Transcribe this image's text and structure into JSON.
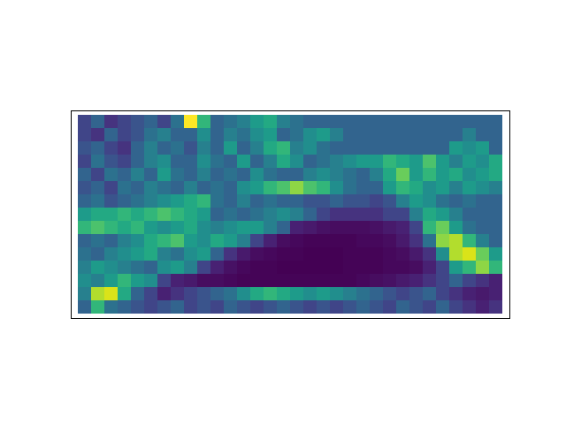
{
  "chart_data": {
    "type": "heatmap",
    "color": "viridis",
    "tick_labels": false,
    "cells": [
      [
        0.2,
        0.3,
        0.15,
        0.2,
        0.25,
        0.3,
        0.2,
        0.35,
        0.9,
        0.6,
        0.3,
        0.35,
        0.4,
        0.5,
        0.55,
        0.4,
        0.35,
        0.3,
        0.3,
        0.3,
        0.3,
        0.3,
        0.3,
        0.3,
        0.3,
        0.3,
        0.3,
        0.3,
        0.3,
        0.3,
        0.3,
        0.3
      ],
      [
        0.2,
        0.15,
        0.3,
        0.2,
        0.25,
        0.35,
        0.4,
        0.3,
        0.3,
        0.45,
        0.3,
        0.4,
        0.35,
        0.45,
        0.5,
        0.3,
        0.35,
        0.45,
        0.5,
        0.4,
        0.3,
        0.3,
        0.3,
        0.3,
        0.3,
        0.3,
        0.3,
        0.3,
        0.3,
        0.4,
        0.3,
        0.3
      ],
      [
        0.25,
        0.3,
        0.2,
        0.15,
        0.3,
        0.4,
        0.3,
        0.35,
        0.25,
        0.4,
        0.3,
        0.5,
        0.3,
        0.4,
        0.55,
        0.6,
        0.4,
        0.45,
        0.35,
        0.3,
        0.3,
        0.3,
        0.3,
        0.3,
        0.3,
        0.3,
        0.3,
        0.3,
        0.5,
        0.45,
        0.5,
        0.3
      ],
      [
        0.2,
        0.35,
        0.25,
        0.2,
        0.3,
        0.4,
        0.45,
        0.3,
        0.3,
        0.45,
        0.35,
        0.3,
        0.5,
        0.3,
        0.4,
        0.55,
        0.45,
        0.3,
        0.35,
        0.4,
        0.45,
        0.5,
        0.5,
        0.6,
        0.55,
        0.5,
        0.65,
        0.5,
        0.4,
        0.5,
        0.45,
        0.55
      ],
      [
        0.3,
        0.2,
        0.35,
        0.3,
        0.4,
        0.3,
        0.5,
        0.35,
        0.3,
        0.4,
        0.3,
        0.35,
        0.3,
        0.45,
        0.35,
        0.3,
        0.3,
        0.4,
        0.45,
        0.4,
        0.35,
        0.3,
        0.4,
        0.55,
        0.7,
        0.5,
        0.6,
        0.5,
        0.55,
        0.45,
        0.5,
        0.55
      ],
      [
        0.25,
        0.3,
        0.2,
        0.35,
        0.3,
        0.4,
        0.35,
        0.3,
        0.4,
        0.3,
        0.35,
        0.3,
        0.45,
        0.5,
        0.6,
        0.65,
        0.75,
        0.65,
        0.6,
        0.45,
        0.35,
        0.3,
        0.3,
        0.5,
        0.6,
        0.55,
        0.45,
        0.5,
        0.4,
        0.5,
        0.45,
        0.4
      ],
      [
        0.3,
        0.35,
        0.25,
        0.3,
        0.35,
        0.4,
        0.45,
        0.5,
        0.55,
        0.6,
        0.35,
        0.3,
        0.4,
        0.3,
        0.35,
        0.3,
        0.3,
        0.25,
        0.25,
        0.3,
        0.25,
        0.25,
        0.2,
        0.25,
        0.4,
        0.5,
        0.45,
        0.35,
        0.3,
        0.35,
        0.3,
        0.3
      ],
      [
        0.5,
        0.55,
        0.55,
        0.6,
        0.55,
        0.6,
        0.65,
        0.6,
        0.55,
        0.5,
        0.3,
        0.35,
        0.3,
        0.35,
        0.4,
        0.45,
        0.4,
        0.3,
        0.2,
        0.15,
        0.15,
        0.15,
        0.15,
        0.2,
        0.2,
        0.4,
        0.55,
        0.5,
        0.4,
        0.3,
        0.3,
        0.3
      ],
      [
        0.6,
        0.65,
        0.6,
        0.55,
        0.6,
        0.5,
        0.45,
        0.5,
        0.55,
        0.45,
        0.4,
        0.45,
        0.5,
        0.5,
        0.4,
        0.3,
        0.1,
        0.08,
        0.06,
        0.05,
        0.05,
        0.05,
        0.06,
        0.08,
        0.1,
        0.2,
        0.6,
        0.7,
        0.5,
        0.35,
        0.3,
        0.3
      ],
      [
        0.3,
        0.35,
        0.3,
        0.4,
        0.45,
        0.55,
        0.6,
        0.65,
        0.5,
        0.45,
        0.55,
        0.5,
        0.4,
        0.2,
        0.1,
        0.05,
        0.04,
        0.03,
        0.03,
        0.03,
        0.03,
        0.04,
        0.04,
        0.05,
        0.08,
        0.15,
        0.35,
        0.75,
        0.8,
        0.6,
        0.4,
        0.3
      ],
      [
        0.35,
        0.3,
        0.4,
        0.45,
        0.5,
        0.55,
        0.4,
        0.35,
        0.45,
        0.5,
        0.3,
        0.15,
        0.08,
        0.05,
        0.04,
        0.03,
        0.03,
        0.02,
        0.02,
        0.02,
        0.03,
        0.03,
        0.03,
        0.04,
        0.05,
        0.08,
        0.15,
        0.45,
        0.8,
        0.85,
        0.7,
        0.5
      ],
      [
        0.4,
        0.5,
        0.45,
        0.4,
        0.35,
        0.3,
        0.45,
        0.5,
        0.4,
        0.2,
        0.1,
        0.06,
        0.04,
        0.03,
        0.03,
        0.02,
        0.02,
        0.02,
        0.02,
        0.02,
        0.03,
        0.03,
        0.03,
        0.04,
        0.04,
        0.05,
        0.1,
        0.2,
        0.5,
        0.6,
        0.75,
        0.6
      ],
      [
        0.45,
        0.4,
        0.5,
        0.6,
        0.5,
        0.45,
        0.2,
        0.1,
        0.08,
        0.05,
        0.05,
        0.04,
        0.03,
        0.03,
        0.03,
        0.03,
        0.03,
        0.03,
        0.03,
        0.03,
        0.03,
        0.04,
        0.05,
        0.06,
        0.08,
        0.1,
        0.15,
        0.2,
        0.3,
        0.2,
        0.15,
        0.1
      ],
      [
        0.4,
        0.8,
        0.85,
        0.55,
        0.3,
        0.2,
        0.1,
        0.15,
        0.2,
        0.25,
        0.3,
        0.35,
        0.45,
        0.55,
        0.6,
        0.55,
        0.5,
        0.45,
        0.5,
        0.45,
        0.4,
        0.35,
        0.3,
        0.25,
        0.2,
        0.25,
        0.3,
        0.2,
        0.15,
        0.1,
        0.08,
        0.1
      ],
      [
        0.3,
        0.6,
        0.35,
        0.3,
        0.25,
        0.2,
        0.25,
        0.3,
        0.2,
        0.25,
        0.2,
        0.3,
        0.25,
        0.2,
        0.25,
        0.3,
        0.25,
        0.2,
        0.25,
        0.2,
        0.25,
        0.3,
        0.25,
        0.2,
        0.3,
        0.25,
        0.2,
        0.3,
        0.2,
        0.15,
        0.1,
        0.15
      ]
    ]
  }
}
